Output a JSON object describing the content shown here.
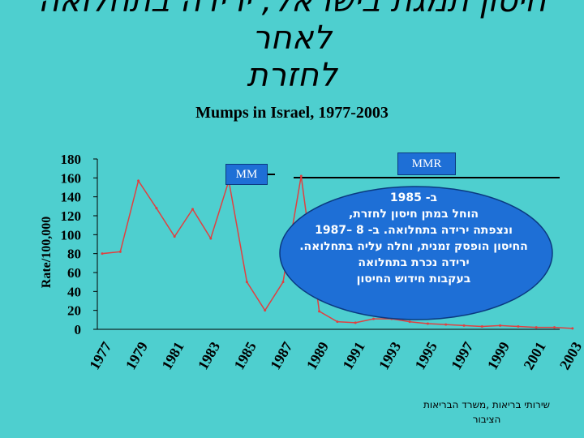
{
  "slide": {
    "title_line1": "חיסון תמגת בישראל; ירידה בתחלואה לאחר",
    "title_line2": "לחזרת"
  },
  "chart_data": {
    "type": "line",
    "title": "Mumps in Israel, 1977-2003",
    "ylabel": "Rate/100,000",
    "xlabel": "",
    "ylim": [
      0,
      180
    ],
    "yticks": [
      0,
      20,
      40,
      60,
      80,
      100,
      120,
      140,
      160,
      180
    ],
    "x": [
      1977,
      1978,
      1979,
      1980,
      1981,
      1982,
      1983,
      1984,
      1985,
      1986,
      1987,
      1988,
      1989,
      1990,
      1991,
      1992,
      1993,
      1994,
      1995,
      1996,
      1997,
      1998,
      1999,
      2000,
      2001,
      2002,
      2003
    ],
    "xtick_labels": [
      "1977",
      "1979",
      "1981",
      "1983",
      "1985",
      "1987",
      "1989",
      "1991",
      "1993",
      "1995",
      "1997",
      "1999",
      "2001",
      "2003"
    ],
    "series": [
      {
        "color": "#e04040",
        "values": [
          80,
          82,
          157,
          128,
          98,
          127,
          96,
          157,
          50,
          20,
          50,
          162,
          19,
          8,
          7,
          11,
          11,
          8,
          6,
          5,
          4,
          3,
          4,
          3,
          2,
          2,
          1
        ]
      }
    ],
    "annotations": [
      {
        "label": "MM",
        "from": 1978,
        "to": 1987
      },
      {
        "label": "MMR",
        "from": 1988,
        "to": 2004
      }
    ],
    "grid": false,
    "legend": "none"
  },
  "annotation_box": {
    "lines": [
      "ב- 1985",
      "הוחל במתן חיסון לחזרת,",
      "ונצפתה ירידה בתחלואה.  ב- 8 –1987",
      "החיסון הופסק זמנית, וחלה עליה בתחלואה.",
      "ירידה נכרת בתחלואה",
      "בעקבות חידוש החיסון"
    ],
    "fill": "#1e6fd6"
  },
  "source": {
    "line1": "שירותי בריאות ,משרד הבריאות",
    "line2": "הציבור"
  }
}
